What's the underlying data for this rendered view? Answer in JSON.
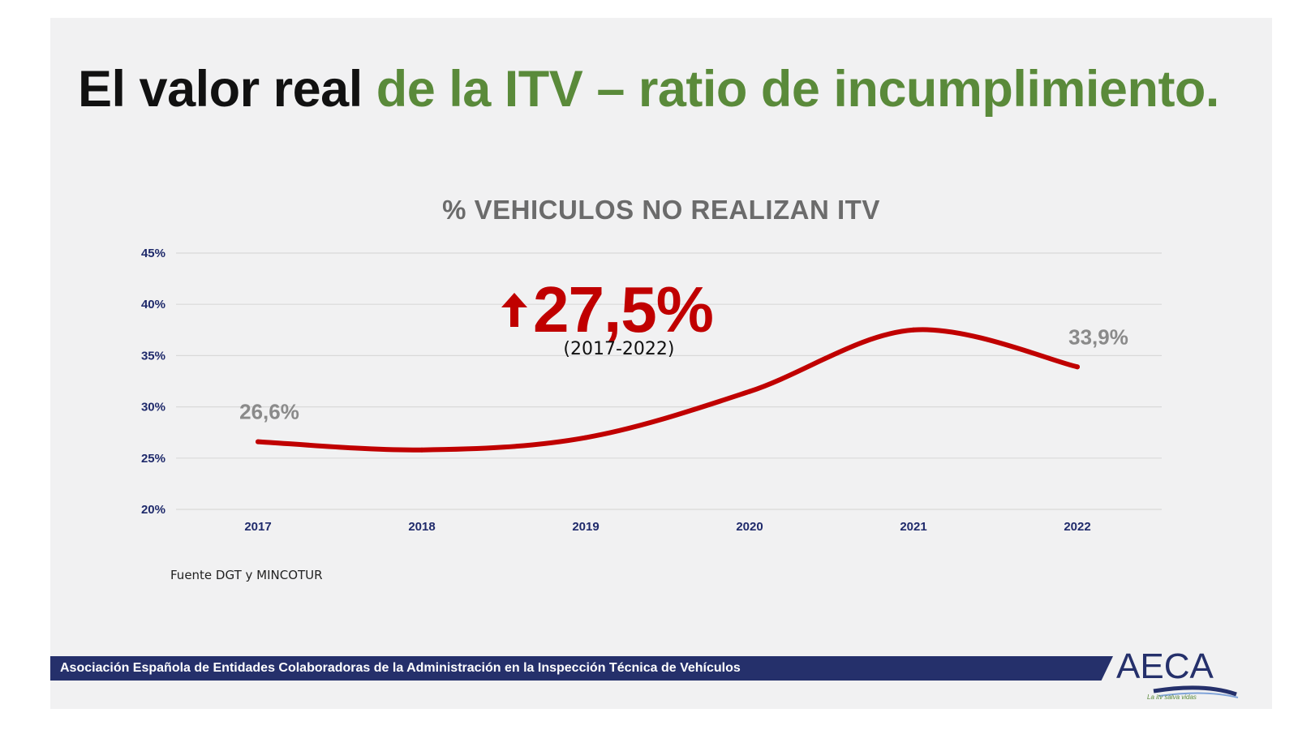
{
  "headline": {
    "part1": "El valor real",
    "part2": "de la ITV – ratio de incumplimiento."
  },
  "callout": {
    "value": "27,5%",
    "period": "(2017-2022)",
    "arrow_icon": "arrow-up-icon"
  },
  "source": "Fuente DGT y MINCOTUR",
  "footer": {
    "text": "Asociación Española de Entidades Colaboradoras de la Administración en la Inspección Técnica de Vehículos"
  },
  "logo": {
    "name": "AECA",
    "tagline": "La itv salva vidas"
  },
  "colors": {
    "line": "#c00000",
    "accent_green": "#5a8a3a",
    "footer_band": "#25306b",
    "axis_text": "#1f2a6b"
  },
  "chart_data": {
    "type": "line",
    "title": "% VEHICULOS NO REALIZAN ITV",
    "xlabel": "",
    "ylabel": "",
    "x": [
      "2017",
      "2018",
      "2019",
      "2020",
      "2021",
      "2022"
    ],
    "series": [
      {
        "values": [
          26.6,
          25.8,
          27.0,
          31.5,
          37.5,
          33.9
        ]
      }
    ],
    "ylim": [
      20,
      45
    ],
    "yticks": [
      20,
      25,
      30,
      35,
      40,
      45
    ],
    "ytick_labels": [
      "20%",
      "25%",
      "30%",
      "35%",
      "40%",
      "45%"
    ],
    "grid": true,
    "data_labels": [
      {
        "index": 0,
        "text": "26,6%"
      },
      {
        "index": 5,
        "text": "33,9%"
      }
    ]
  }
}
